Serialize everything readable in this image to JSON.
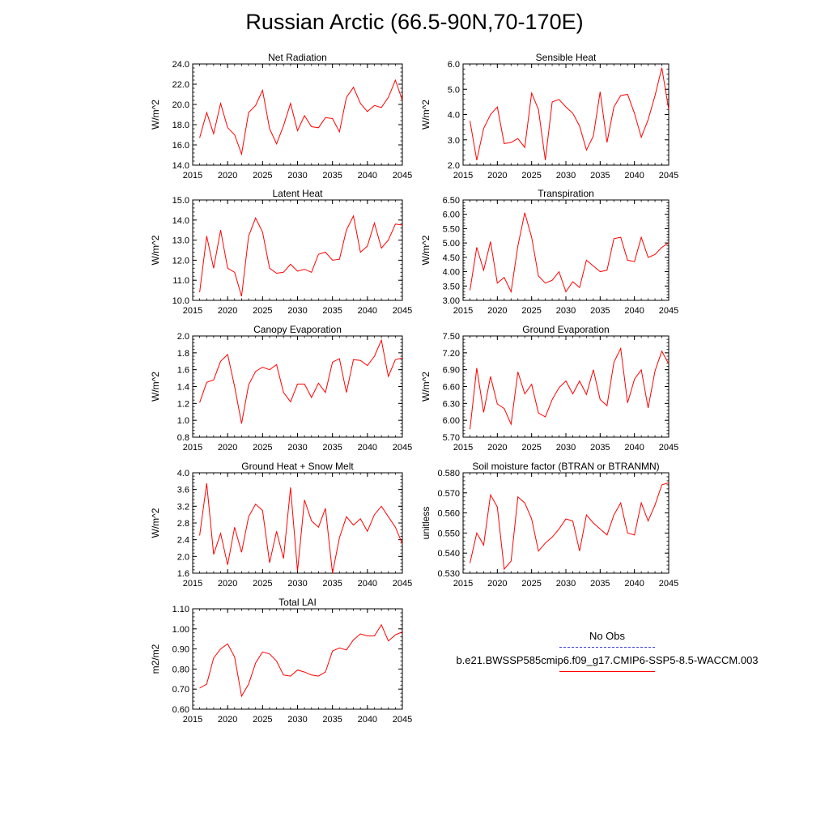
{
  "title": "Russian Arctic (66.5-90N,70-170E)",
  "legend": {
    "obs_label": "No Obs",
    "model_label": "b.e21.BWSSP585cmip6.f09_g17.CMIP6-SSP5-8.5-WACCM.003",
    "obs_color": "#3b3bdc",
    "model_color": "#ff0000"
  },
  "chart_data": [
    {
      "type": "line",
      "title": "Net Radiation",
      "ylabel": "W/m^2",
      "xlim": [
        2015,
        2045
      ],
      "ylim": [
        14.0,
        24.0
      ],
      "xticks": [
        "2015",
        "2020",
        "2025",
        "2030",
        "2035",
        "2040",
        "2045"
      ],
      "yticks": [
        "14.0",
        "16.0",
        "18.0",
        "20.0",
        "22.0",
        "24.0"
      ],
      "x": [
        2016,
        2017,
        2018,
        2019,
        2020,
        2021,
        2022,
        2023,
        2024,
        2025,
        2026,
        2027,
        2028,
        2029,
        2030,
        2031,
        2032,
        2033,
        2034,
        2035,
        2036,
        2037,
        2038,
        2039,
        2040,
        2041,
        2042,
        2043,
        2044,
        2045
      ],
      "values": [
        16.7,
        19.2,
        17.1,
        20.1,
        17.7,
        17.0,
        15.1,
        19.2,
        19.9,
        21.4,
        17.6,
        16.1,
        17.9,
        20.1,
        17.4,
        18.9,
        17.8,
        17.7,
        18.7,
        18.6,
        17.3,
        20.7,
        21.7,
        20.1,
        19.3,
        19.9,
        19.7,
        20.7,
        22.4,
        20.4
      ],
      "color": "#ff0000"
    },
    {
      "type": "line",
      "title": "Sensible Heat",
      "ylabel": "W/m^2",
      "xlim": [
        2015,
        2045
      ],
      "ylim": [
        2.0,
        6.0
      ],
      "xticks": [
        "2015",
        "2020",
        "2025",
        "2030",
        "2035",
        "2040",
        "2045"
      ],
      "yticks": [
        "2.0",
        "3.0",
        "4.0",
        "5.0",
        "6.0"
      ],
      "x": [
        2016,
        2017,
        2018,
        2019,
        2020,
        2021,
        2022,
        2023,
        2024,
        2025,
        2026,
        2027,
        2028,
        2029,
        2030,
        2031,
        2032,
        2033,
        2034,
        2035,
        2036,
        2037,
        2038,
        2039,
        2040,
        2041,
        2042,
        2043,
        2044,
        2045
      ],
      "values": [
        3.75,
        2.2,
        3.45,
        4.0,
        4.3,
        2.85,
        2.9,
        3.05,
        2.7,
        4.85,
        4.2,
        2.2,
        4.5,
        4.6,
        4.3,
        4.05,
        3.55,
        2.6,
        3.15,
        4.9,
        2.9,
        4.3,
        4.75,
        4.8,
        4.05,
        3.1,
        3.8,
        4.75,
        5.85,
        4.2
      ],
      "color": "#ff0000"
    },
    {
      "type": "line",
      "title": "Latent Heat",
      "ylabel": "W/m^2",
      "xlim": [
        2015,
        2045
      ],
      "ylim": [
        10.0,
        15.0
      ],
      "xticks": [
        "2015",
        "2020",
        "2025",
        "2030",
        "2035",
        "2040",
        "2045"
      ],
      "yticks": [
        "10.0",
        "11.0",
        "12.0",
        "13.0",
        "14.0",
        "15.0"
      ],
      "x": [
        2016,
        2017,
        2018,
        2019,
        2020,
        2021,
        2022,
        2023,
        2024,
        2025,
        2026,
        2027,
        2028,
        2029,
        2030,
        2031,
        2032,
        2033,
        2034,
        2035,
        2036,
        2037,
        2038,
        2039,
        2040,
        2041,
        2042,
        2043,
        2044,
        2045
      ],
      "values": [
        10.4,
        13.2,
        11.6,
        13.5,
        11.6,
        11.4,
        10.2,
        13.2,
        14.1,
        13.4,
        11.6,
        11.35,
        11.4,
        11.8,
        11.45,
        11.55,
        11.4,
        12.3,
        12.4,
        12.0,
        12.05,
        13.5,
        14.2,
        12.4,
        12.7,
        13.85,
        12.6,
        13.0,
        13.8,
        13.75
      ],
      "color": "#ff0000"
    },
    {
      "type": "line",
      "title": "Transpiration",
      "ylabel": "W/m^2",
      "xlim": [
        2015,
        2045
      ],
      "ylim": [
        3.0,
        6.5
      ],
      "xticks": [
        "2015",
        "2020",
        "2025",
        "2030",
        "2035",
        "2040",
        "2045"
      ],
      "yticks": [
        "3.00",
        "3.50",
        "4.00",
        "4.50",
        "5.00",
        "5.50",
        "6.00",
        "6.50"
      ],
      "x": [
        2016,
        2017,
        2018,
        2019,
        2020,
        2021,
        2022,
        2023,
        2024,
        2025,
        2026,
        2027,
        2028,
        2029,
        2030,
        2031,
        2032,
        2033,
        2034,
        2035,
        2036,
        2037,
        2038,
        2039,
        2040,
        2041,
        2042,
        2043,
        2044,
        2045
      ],
      "values": [
        3.35,
        4.85,
        4.05,
        5.05,
        3.6,
        3.8,
        3.3,
        4.9,
        6.05,
        5.2,
        3.85,
        3.6,
        3.7,
        4.0,
        3.3,
        3.65,
        3.45,
        4.4,
        4.2,
        4.0,
        4.05,
        5.15,
        5.2,
        4.4,
        4.35,
        5.2,
        4.5,
        4.6,
        4.85,
        5.0
      ],
      "color": "#ff0000"
    },
    {
      "type": "line",
      "title": "Canopy Evaporation",
      "ylabel": "W/m^2",
      "xlim": [
        2015,
        2045
      ],
      "ylim": [
        0.8,
        2.0
      ],
      "xticks": [
        "2015",
        "2020",
        "2025",
        "2030",
        "2035",
        "2040",
        "2045"
      ],
      "yticks": [
        "0.8",
        "1.0",
        "1.2",
        "1.4",
        "1.6",
        "1.8",
        "2.0"
      ],
      "x": [
        2016,
        2017,
        2018,
        2019,
        2020,
        2021,
        2022,
        2023,
        2024,
        2025,
        2026,
        2027,
        2028,
        2029,
        2030,
        2031,
        2032,
        2033,
        2034,
        2035,
        2036,
        2037,
        2038,
        2039,
        2040,
        2041,
        2042,
        2043,
        2044,
        2045
      ],
      "values": [
        1.21,
        1.45,
        1.48,
        1.7,
        1.78,
        1.4,
        0.96,
        1.42,
        1.58,
        1.63,
        1.6,
        1.66,
        1.33,
        1.22,
        1.43,
        1.43,
        1.27,
        1.44,
        1.33,
        1.69,
        1.73,
        1.33,
        1.72,
        1.71,
        1.65,
        1.76,
        1.95,
        1.52,
        1.72,
        1.74
      ],
      "color": "#ff0000"
    },
    {
      "type": "line",
      "title": "Ground Evaporation",
      "ylabel": "W/m^2",
      "xlim": [
        2015,
        2045
      ],
      "ylim": [
        5.7,
        7.5
      ],
      "xticks": [
        "2015",
        "2020",
        "2025",
        "2030",
        "2035",
        "2040",
        "2045"
      ],
      "yticks": [
        "5.70",
        "6.00",
        "6.30",
        "6.60",
        "6.90",
        "7.20",
        "7.50"
      ],
      "x": [
        2016,
        2017,
        2018,
        2019,
        2020,
        2021,
        2022,
        2023,
        2024,
        2025,
        2026,
        2027,
        2028,
        2029,
        2030,
        2031,
        2032,
        2033,
        2034,
        2035,
        2036,
        2037,
        2038,
        2039,
        2040,
        2041,
        2042,
        2043,
        2044,
        2045
      ],
      "values": [
        5.84,
        6.93,
        6.14,
        6.78,
        6.29,
        6.21,
        5.93,
        6.86,
        6.47,
        6.64,
        6.13,
        6.06,
        6.37,
        6.58,
        6.7,
        6.47,
        6.7,
        6.46,
        6.9,
        6.37,
        6.26,
        7.03,
        7.28,
        6.31,
        6.73,
        6.9,
        6.22,
        6.88,
        7.23,
        7.0
      ],
      "color": "#ff0000"
    },
    {
      "type": "line",
      "title": "Ground Heat + Snow Melt",
      "ylabel": "W/m^2",
      "xlim": [
        2015,
        2045
      ],
      "ylim": [
        1.6,
        4.0
      ],
      "xticks": [
        "2015",
        "2020",
        "2025",
        "2030",
        "2035",
        "2040",
        "2045"
      ],
      "yticks": [
        "1.6",
        "2.0",
        "2.4",
        "2.8",
        "3.2",
        "3.6",
        "4.0"
      ],
      "x": [
        2016,
        2017,
        2018,
        2019,
        2020,
        2021,
        2022,
        2023,
        2024,
        2025,
        2026,
        2027,
        2028,
        2029,
        2030,
        2031,
        2032,
        2033,
        2034,
        2035,
        2036,
        2037,
        2038,
        2039,
        2040,
        2041,
        2042,
        2043,
        2044,
        2045
      ],
      "values": [
        2.5,
        3.75,
        2.05,
        2.55,
        1.8,
        2.7,
        2.1,
        2.95,
        3.25,
        3.1,
        1.85,
        2.6,
        1.95,
        3.65,
        1.65,
        3.35,
        2.85,
        2.7,
        3.15,
        1.6,
        2.45,
        2.95,
        2.75,
        2.9,
        2.6,
        3.0,
        3.2,
        2.95,
        2.7,
        2.3
      ],
      "color": "#ff0000"
    },
    {
      "type": "line",
      "title": "Soil moisture factor (BTRAN or BTRANMN)",
      "ylabel": "unitless",
      "xlim": [
        2015,
        2045
      ],
      "ylim": [
        0.53,
        0.58
      ],
      "xticks": [
        "2015",
        "2020",
        "2025",
        "2030",
        "2035",
        "2040",
        "2045"
      ],
      "yticks": [
        "0.530",
        "0.540",
        "0.550",
        "0.560",
        "0.570",
        "0.580"
      ],
      "x": [
        2016,
        2017,
        2018,
        2019,
        2020,
        2021,
        2022,
        2023,
        2024,
        2025,
        2026,
        2027,
        2028,
        2029,
        2030,
        2031,
        2032,
        2033,
        2034,
        2035,
        2036,
        2037,
        2038,
        2039,
        2040,
        2041,
        2042,
        2043,
        2044,
        2045
      ],
      "values": [
        0.535,
        0.55,
        0.544,
        0.569,
        0.563,
        0.532,
        0.536,
        0.568,
        0.565,
        0.557,
        0.541,
        0.545,
        0.548,
        0.552,
        0.557,
        0.556,
        0.541,
        0.559,
        0.555,
        0.552,
        0.549,
        0.559,
        0.565,
        0.55,
        0.549,
        0.565,
        0.556,
        0.564,
        0.574,
        0.575
      ],
      "color": "#ff0000"
    },
    {
      "type": "line",
      "title": "Total LAI",
      "ylabel": "m2/m2",
      "xlim": [
        2015,
        2045
      ],
      "ylim": [
        0.6,
        1.1
      ],
      "xticks": [
        "2015",
        "2020",
        "2025",
        "2030",
        "2035",
        "2040",
        "2045"
      ],
      "yticks": [
        "0.60",
        "0.70",
        "0.80",
        "0.90",
        "1.00",
        "1.10"
      ],
      "x": [
        2016,
        2017,
        2018,
        2019,
        2020,
        2021,
        2022,
        2023,
        2024,
        2025,
        2026,
        2027,
        2028,
        2029,
        2030,
        2031,
        2032,
        2033,
        2034,
        2035,
        2036,
        2037,
        2038,
        2039,
        2040,
        2041,
        2042,
        2043,
        2044,
        2045
      ],
      "values": [
        0.705,
        0.725,
        0.855,
        0.9,
        0.925,
        0.86,
        0.665,
        0.725,
        0.83,
        0.885,
        0.875,
        0.84,
        0.77,
        0.765,
        0.795,
        0.785,
        0.77,
        0.765,
        0.785,
        0.89,
        0.905,
        0.895,
        0.945,
        0.975,
        0.965,
        0.965,
        1.02,
        0.94,
        0.97,
        0.985
      ],
      "color": "#ff0000"
    }
  ]
}
